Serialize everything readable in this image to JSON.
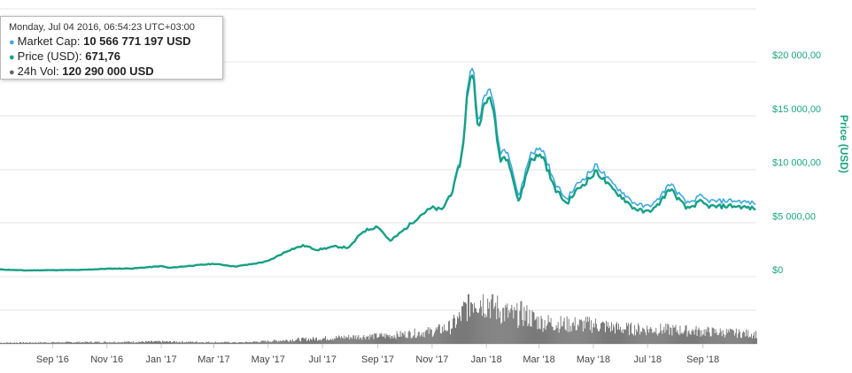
{
  "tooltip": {
    "date": "Monday, Jul 04 2016, 06:54:23 UTC+03:00",
    "rows": [
      {
        "label": "Market Cap:",
        "value": "10 566 771 197 USD",
        "color": "#3fa9e0"
      },
      {
        "label": "Price (USD):",
        "value": "671,76",
        "color": "#16a085"
      },
      {
        "label": "24h Vol:",
        "value": "120 290 000 USD",
        "color": "#666666"
      }
    ]
  },
  "chart_data": {
    "type": "line",
    "ylabel": "Price (USD)",
    "ylim": [
      0,
      20000
    ],
    "y_ticks": [
      "$0",
      "$5 000,00",
      "$10 000,00",
      "$15 000,00",
      "$20 000,00"
    ],
    "y_tick_values": [
      0,
      5000,
      10000,
      15000,
      20000
    ],
    "x_tick_labels": [
      "Sep '16",
      "Nov '16",
      "Jan '17",
      "Mar '17",
      "May '17",
      "Jul '17",
      "Sep '17",
      "Nov '17",
      "Jan '18",
      "Mar '18",
      "May '18",
      "Jul '18",
      "Sep '18"
    ],
    "x_tick_dates": [
      "2016-09-01",
      "2016-11-01",
      "2017-01-01",
      "2017-03-01",
      "2017-05-01",
      "2017-07-01",
      "2017-09-01",
      "2017-11-01",
      "2018-01-01",
      "2018-03-01",
      "2018-05-01",
      "2018-07-01",
      "2018-09-01"
    ],
    "colors": {
      "market_cap": "#3fa9e0",
      "price": "#16a085",
      "volume": "#6b6b6b"
    },
    "series": [
      {
        "name": "Price (USD)",
        "x": [
          "2016-07-04",
          "2016-08-01",
          "2016-09-01",
          "2016-10-01",
          "2016-11-01",
          "2016-12-01",
          "2017-01-01",
          "2017-01-10",
          "2017-02-01",
          "2017-03-01",
          "2017-03-25",
          "2017-04-15",
          "2017-05-01",
          "2017-05-25",
          "2017-06-10",
          "2017-06-25",
          "2017-07-15",
          "2017-07-31",
          "2017-08-15",
          "2017-09-01",
          "2017-09-15",
          "2017-10-01",
          "2017-10-20",
          "2017-11-01",
          "2017-11-12",
          "2017-11-25",
          "2017-12-05",
          "2017-12-10",
          "2017-12-17",
          "2017-12-22",
          "2017-12-28",
          "2018-01-06",
          "2018-01-16",
          "2018-01-25",
          "2018-02-06",
          "2018-02-20",
          "2018-03-05",
          "2018-03-18",
          "2018-04-01",
          "2018-04-12",
          "2018-05-05",
          "2018-05-20",
          "2018-06-01",
          "2018-06-15",
          "2018-06-28",
          "2018-07-10",
          "2018-07-26",
          "2018-08-14",
          "2018-08-30",
          "2018-09-05",
          "2018-09-15",
          "2018-10-01",
          "2018-10-15",
          "2018-10-31"
        ],
        "values": [
          670,
          580,
          610,
          620,
          740,
          770,
          980,
          820,
          1000,
          1200,
          950,
          1200,
          1450,
          2500,
          2900,
          2500,
          2800,
          2700,
          4200,
          4700,
          3300,
          4400,
          5800,
          6400,
          6200,
          8200,
          11500,
          16500,
          19500,
          14000,
          15500,
          17000,
          11000,
          11200,
          6900,
          11000,
          11300,
          8300,
          6800,
          8000,
          9800,
          8300,
          7500,
          6400,
          6000,
          6400,
          8200,
          6300,
          7000,
          6600,
          6500,
          6600,
          6500,
          6300
        ]
      },
      {
        "name": "Market Cap",
        "x": [
          "2016-07-04",
          "2016-08-01",
          "2016-09-01",
          "2016-10-01",
          "2016-11-01",
          "2016-12-01",
          "2017-01-01",
          "2017-01-10",
          "2017-02-01",
          "2017-03-01",
          "2017-03-25",
          "2017-04-15",
          "2017-05-01",
          "2017-05-25",
          "2017-06-10",
          "2017-06-25",
          "2017-07-15",
          "2017-07-31",
          "2017-08-15",
          "2017-09-01",
          "2017-09-15",
          "2017-10-01",
          "2017-10-20",
          "2017-11-01",
          "2017-11-12",
          "2017-11-25",
          "2017-12-05",
          "2017-12-10",
          "2017-12-17",
          "2017-12-22",
          "2017-12-28",
          "2018-01-06",
          "2018-01-16",
          "2018-01-25",
          "2018-02-06",
          "2018-02-20",
          "2018-03-05",
          "2018-03-18",
          "2018-04-01",
          "2018-04-12",
          "2018-05-05",
          "2018-05-20",
          "2018-06-01",
          "2018-06-15",
          "2018-06-28",
          "2018-07-10",
          "2018-07-26",
          "2018-08-14",
          "2018-08-30",
          "2018-09-05",
          "2018-09-15",
          "2018-10-01",
          "2018-10-15",
          "2018-10-31"
        ],
        "values": [
          670,
          580,
          610,
          620,
          740,
          770,
          980,
          820,
          1000,
          1200,
          950,
          1200,
          1450,
          2500,
          2900,
          2500,
          2800,
          2700,
          4200,
          4700,
          3300,
          4400,
          5800,
          6400,
          6200,
          8300,
          11800,
          17000,
          20200,
          14600,
          16200,
          17800,
          11700,
          11900,
          7400,
          11600,
          11900,
          8800,
          7200,
          8500,
          10400,
          8800,
          8000,
          6900,
          6500,
          6900,
          8700,
          6800,
          7500,
          7100,
          7000,
          7100,
          7000,
          6800
        ]
      },
      {
        "name": "24h Vol",
        "x": [
          "2016-07-04",
          "2017-01-01",
          "2017-04-01",
          "2017-06-01",
          "2017-08-01",
          "2017-09-15",
          "2017-11-01",
          "2017-11-20",
          "2017-12-01",
          "2017-12-10",
          "2017-12-18",
          "2017-12-25",
          "2018-01-05",
          "2018-01-16",
          "2018-02-01",
          "2018-02-10",
          "2018-03-01",
          "2018-04-01",
          "2018-05-01",
          "2018-06-01",
          "2018-07-01",
          "2018-08-01",
          "2018-09-01",
          "2018-10-01",
          "2018-10-31"
        ],
        "values": [
          0.4,
          0.8,
          0.5,
          1.5,
          2.5,
          3,
          4.5,
          6,
          9,
          14,
          17,
          16,
          15,
          12,
          10,
          11,
          8,
          7,
          7,
          5.5,
          5.3,
          5,
          4.5,
          4,
          3.5
        ]
      }
    ],
    "volume_ylim": [
      0,
      18
    ]
  }
}
